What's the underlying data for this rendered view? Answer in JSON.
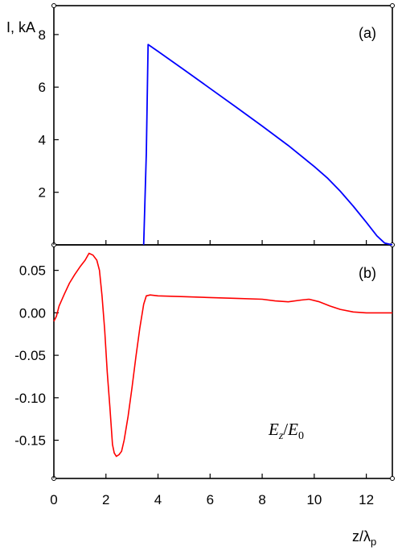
{
  "chart_data": [
    {
      "type": "line",
      "panel_label": "(a)",
      "ylabel": "I, kA",
      "xlim": [
        0,
        13
      ],
      "ylim": [
        0,
        9.1
      ],
      "yticks": [
        2,
        4,
        6,
        8
      ],
      "grid": false,
      "series": [
        {
          "color": "#0000ff",
          "points": [
            [
              3.45,
              0.0
            ],
            [
              3.55,
              3.5
            ],
            [
              3.62,
              7.62
            ],
            [
              4.0,
              7.36
            ],
            [
              5.0,
              6.66
            ],
            [
              6.0,
              5.95
            ],
            [
              7.0,
              5.24
            ],
            [
              8.0,
              4.52
            ],
            [
              9.0,
              3.78
            ],
            [
              10.0,
              2.98
            ],
            [
              10.5,
              2.55
            ],
            [
              11.0,
              2.04
            ],
            [
              11.5,
              1.47
            ],
            [
              12.0,
              0.86
            ],
            [
              12.4,
              0.35
            ],
            [
              12.7,
              0.07
            ],
            [
              13.0,
              0.0
            ]
          ]
        }
      ]
    },
    {
      "type": "line",
      "panel_label": "(b)",
      "annotation": {
        "E": "E",
        "z": "z",
        "slash": "/",
        "E0": "E",
        "zero": "0"
      },
      "xlabel": {
        "z": "z/λ",
        "p": "p"
      },
      "xlim": [
        0,
        13
      ],
      "ylim": [
        -0.195,
        0.08
      ],
      "xticks": [
        0,
        2,
        4,
        6,
        8,
        10,
        12
      ],
      "yticks": [
        0.05,
        0.0,
        -0.05,
        -0.1,
        -0.15
      ],
      "ytick_labels": [
        "0.05",
        "0.00",
        "-0.05",
        "-0.10",
        "-0.15"
      ],
      "grid": false,
      "series": [
        {
          "color": "#ff0000",
          "points": [
            [
              0.0,
              -0.01
            ],
            [
              0.1,
              -0.004
            ],
            [
              0.2,
              0.008
            ],
            [
              0.4,
              0.022
            ],
            [
              0.6,
              0.035
            ],
            [
              0.8,
              0.045
            ],
            [
              1.0,
              0.054
            ],
            [
              1.2,
              0.062
            ],
            [
              1.35,
              0.07
            ],
            [
              1.5,
              0.068
            ],
            [
              1.65,
              0.062
            ],
            [
              1.75,
              0.05
            ],
            [
              1.85,
              0.02
            ],
            [
              1.95,
              -0.02
            ],
            [
              2.05,
              -0.07
            ],
            [
              2.15,
              -0.11
            ],
            [
              2.25,
              -0.155
            ],
            [
              2.32,
              -0.165
            ],
            [
              2.4,
              -0.169
            ],
            [
              2.5,
              -0.167
            ],
            [
              2.6,
              -0.163
            ],
            [
              2.7,
              -0.15
            ],
            [
              2.85,
              -0.122
            ],
            [
              3.0,
              -0.088
            ],
            [
              3.15,
              -0.052
            ],
            [
              3.3,
              -0.018
            ],
            [
              3.45,
              0.01
            ],
            [
              3.55,
              0.02
            ],
            [
              3.7,
              0.021
            ],
            [
              4.0,
              0.02
            ],
            [
              5.0,
              0.019
            ],
            [
              6.0,
              0.018
            ],
            [
              7.0,
              0.017
            ],
            [
              8.0,
              0.016
            ],
            [
              8.5,
              0.014
            ],
            [
              9.0,
              0.013
            ],
            [
              9.5,
              0.015
            ],
            [
              9.8,
              0.016
            ],
            [
              10.2,
              0.013
            ],
            [
              10.6,
              0.008
            ],
            [
              11.0,
              0.004
            ],
            [
              11.5,
              0.001
            ],
            [
              12.0,
              0.0
            ],
            [
              13.0,
              0.0
            ]
          ]
        }
      ]
    }
  ]
}
